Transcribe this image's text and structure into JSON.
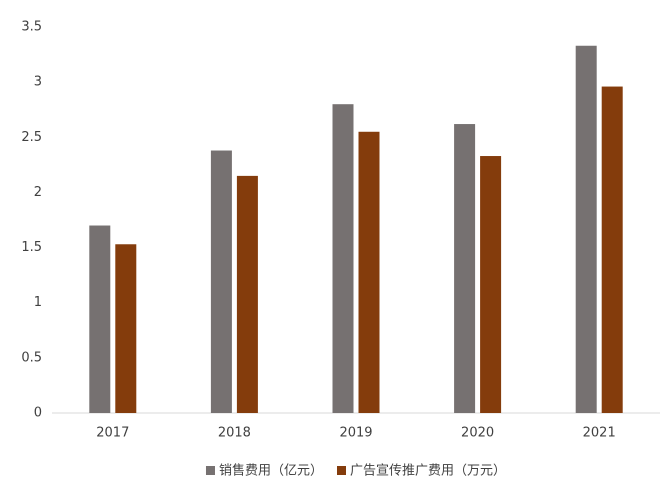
{
  "chart_data": {
    "type": "bar",
    "categories": [
      "2017",
      "2018",
      "2019",
      "2020",
      "2021"
    ],
    "series": [
      {
        "name": "销售费用（亿元）",
        "color": "#767171",
        "values": [
          1.7,
          2.38,
          2.8,
          2.62,
          3.33
        ]
      },
      {
        "name": "广告宣传推广费用（万元）",
        "color": "#843c0c",
        "values": [
          1.53,
          2.15,
          2.55,
          2.33,
          2.96
        ]
      }
    ],
    "ylim": [
      0,
      3.5
    ],
    "yticks": [
      0,
      0.5,
      1,
      1.5,
      2,
      2.5,
      3,
      3.5
    ],
    "grid": false,
    "legend": "bottom"
  }
}
